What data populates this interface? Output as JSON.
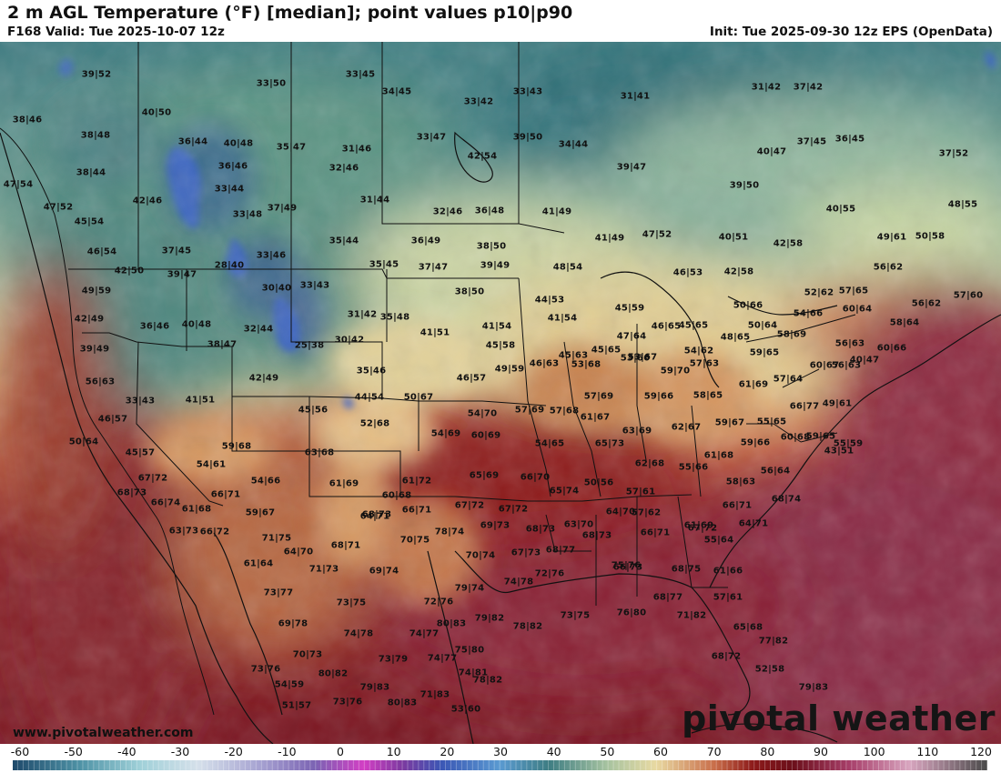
{
  "header": {
    "title": "2 m AGL Temperature (°F) [median]; point values p10|p90",
    "valid": "F168 Valid: Tue 2025-10-07 12z",
    "init": "Init: Tue 2025-09-30 12z EPS (OpenData)"
  },
  "footer": {
    "website": "www.pivotalweather.com",
    "logo_text": "pivotal weather"
  },
  "colorbar": {
    "ticks": [
      "-60",
      "-50",
      "-40",
      "-30",
      "-20",
      "-10",
      "0",
      "10",
      "20",
      "30",
      "40",
      "50",
      "60",
      "70",
      "80",
      "90",
      "100",
      "110",
      "120"
    ],
    "range": [
      -60,
      120
    ]
  },
  "point_values": [
    {
      "v": "39|52"
    },
    {
      "v": "33|50"
    },
    {
      "v": "33|45"
    },
    {
      "v": "34|45"
    },
    {
      "v": "33|42"
    },
    {
      "v": "33|43"
    },
    {
      "v": "31|41"
    },
    {
      "v": "31|42"
    },
    {
      "v": "37|42"
    },
    {
      "v": "38|46"
    },
    {
      "v": "40|50"
    },
    {
      "v": "38|48"
    },
    {
      "v": "36|44"
    },
    {
      "v": "40|48"
    },
    {
      "v": "35|47"
    },
    {
      "v": "31|46"
    },
    {
      "v": "33|47"
    },
    {
      "v": "39|50"
    },
    {
      "v": "34|44"
    },
    {
      "v": "40|47"
    },
    {
      "v": "37|45"
    },
    {
      "v": "36|45"
    },
    {
      "v": "37|52"
    },
    {
      "v": "38|44"
    },
    {
      "v": "36|46"
    },
    {
      "v": "32|46"
    },
    {
      "v": "42|54"
    },
    {
      "v": "39|47"
    },
    {
      "v": "47|54"
    },
    {
      "v": "33|44"
    },
    {
      "v": "31|44"
    },
    {
      "v": "39|50"
    },
    {
      "v": "47|52"
    },
    {
      "v": "42|46"
    },
    {
      "v": "33|48"
    },
    {
      "v": "37|49"
    },
    {
      "v": "32|46"
    },
    {
      "v": "36|48"
    },
    {
      "v": "41|49"
    },
    {
      "v": "40|55"
    },
    {
      "v": "48|55"
    },
    {
      "v": "45|54"
    },
    {
      "v": "35|44"
    },
    {
      "v": "36|49"
    },
    {
      "v": "41|49"
    },
    {
      "v": "47|52"
    },
    {
      "v": "40|51"
    },
    {
      "v": "42|58"
    },
    {
      "v": "49|61"
    },
    {
      "v": "50|58"
    },
    {
      "v": "46|54"
    },
    {
      "v": "37|45"
    },
    {
      "v": "33|46"
    },
    {
      "v": "38|50"
    },
    {
      "v": "28|40"
    },
    {
      "v": "35|45"
    },
    {
      "v": "37|47"
    },
    {
      "v": "39|49"
    },
    {
      "v": "48|54"
    },
    {
      "v": "46|53"
    },
    {
      "v": "42|58"
    },
    {
      "v": "56|62"
    },
    {
      "v": "42|50"
    },
    {
      "v": "39|47"
    },
    {
      "v": "30|40"
    },
    {
      "v": "33|43"
    },
    {
      "v": "38|50"
    },
    {
      "v": "44|53"
    },
    {
      "v": "52|62"
    },
    {
      "v": "57|65"
    },
    {
      "v": "57|60"
    },
    {
      "v": "49|59"
    },
    {
      "v": "31|42"
    },
    {
      "v": "35|48"
    },
    {
      "v": "41|54"
    },
    {
      "v": "45|59"
    },
    {
      "v": "50|66"
    },
    {
      "v": "56|62"
    },
    {
      "v": "60|64"
    },
    {
      "v": "42|49"
    },
    {
      "v": "36|46"
    },
    {
      "v": "40|48"
    },
    {
      "v": "32|44"
    },
    {
      "v": "41|51"
    },
    {
      "v": "41|54"
    },
    {
      "v": "45|65"
    },
    {
      "v": "50|64"
    },
    {
      "v": "54|66"
    },
    {
      "v": "58|64"
    },
    {
      "v": "39|49"
    },
    {
      "v": "38|47"
    },
    {
      "v": "25|38"
    },
    {
      "v": "30|42"
    },
    {
      "v": "45|58"
    },
    {
      "v": "47|64"
    },
    {
      "v": "46|65"
    },
    {
      "v": "48|65"
    },
    {
      "v": "58|69"
    },
    {
      "v": "56|63"
    },
    {
      "v": "60|66"
    },
    {
      "v": "56|63"
    },
    {
      "v": "42|49"
    },
    {
      "v": "35|46"
    },
    {
      "v": "46|57"
    },
    {
      "v": "49|59"
    },
    {
      "v": "46|63"
    },
    {
      "v": "45|63"
    },
    {
      "v": "45|65"
    },
    {
      "v": "53|67"
    },
    {
      "v": "54|62"
    },
    {
      "v": "59|65"
    },
    {
      "v": "40|47"
    },
    {
      "v": "33|43"
    },
    {
      "v": "41|51"
    },
    {
      "v": "44|54"
    },
    {
      "v": "50|67"
    },
    {
      "v": "53|68"
    },
    {
      "v": "53|66"
    },
    {
      "v": "59|70"
    },
    {
      "v": "57|63"
    },
    {
      "v": "57|64"
    },
    {
      "v": "60|67"
    },
    {
      "v": "56|63"
    },
    {
      "v": "46|57"
    },
    {
      "v": "45|56"
    },
    {
      "v": "52|68"
    },
    {
      "v": "54|70"
    },
    {
      "v": "57|69"
    },
    {
      "v": "57|68"
    },
    {
      "v": "57|69"
    },
    {
      "v": "59|66"
    },
    {
      "v": "58|65"
    },
    {
      "v": "61|69"
    },
    {
      "v": "66|77"
    },
    {
      "v": "49|61"
    },
    {
      "v": "50|64"
    },
    {
      "v": "54|69"
    },
    {
      "v": "60|69"
    },
    {
      "v": "61|67"
    },
    {
      "v": "63|69"
    },
    {
      "v": "62|67"
    },
    {
      "v": "59|67"
    },
    {
      "v": "55|65"
    },
    {
      "v": "60|68"
    },
    {
      "v": "59|65"
    },
    {
      "v": "55|59"
    },
    {
      "v": "45|57"
    },
    {
      "v": "59|68"
    },
    {
      "v": "63|68"
    },
    {
      "v": "54|65"
    },
    {
      "v": "65|73"
    },
    {
      "v": "59|66"
    },
    {
      "v": "43|51"
    },
    {
      "v": "54|61"
    },
    {
      "v": "54|66"
    },
    {
      "v": "61|69"
    },
    {
      "v": "61|72"
    },
    {
      "v": "65|69"
    },
    {
      "v": "66|70"
    },
    {
      "v": "62|68"
    },
    {
      "v": "55|66"
    },
    {
      "v": "61|68"
    },
    {
      "v": "58|63"
    },
    {
      "v": "56|64"
    },
    {
      "v": "67|72"
    },
    {
      "v": "60|68"
    },
    {
      "v": "50|56"
    },
    {
      "v": "68|73"
    },
    {
      "v": "68|73"
    },
    {
      "v": "66|71"
    },
    {
      "v": "65|74"
    },
    {
      "v": "57|61"
    },
    {
      "v": "68|74"
    },
    {
      "v": "66|74"
    },
    {
      "v": "61|68"
    },
    {
      "v": "59|67"
    },
    {
      "v": "64|71"
    },
    {
      "v": "66|71"
    },
    {
      "v": "67|72"
    },
    {
      "v": "67|72"
    },
    {
      "v": "63|70"
    },
    {
      "v": "64|70"
    },
    {
      "v": "57|62"
    },
    {
      "v": "66|71"
    },
    {
      "v": "63|73"
    },
    {
      "v": "66|72"
    },
    {
      "v": "71|75"
    },
    {
      "v": "78|74"
    },
    {
      "v": "69|73"
    },
    {
      "v": "68|73"
    },
    {
      "v": "68|73"
    },
    {
      "v": "66|71"
    },
    {
      "v": "67|72"
    },
    {
      "v": "61|69"
    },
    {
      "v": "64|71"
    },
    {
      "v": "64|70"
    },
    {
      "v": "68|71"
    },
    {
      "v": "70|75"
    },
    {
      "v": "70|74"
    },
    {
      "v": "67|73"
    },
    {
      "v": "68|77"
    },
    {
      "v": "66|73"
    },
    {
      "v": "55|64"
    },
    {
      "v": "61|64"
    },
    {
      "v": "71|73"
    },
    {
      "v": "69|74"
    },
    {
      "v": "75|76"
    },
    {
      "v": "68|75"
    },
    {
      "v": "61|66"
    },
    {
      "v": "73|77"
    },
    {
      "v": "73|75"
    },
    {
      "v": "72|76"
    },
    {
      "v": "79|74"
    },
    {
      "v": "74|78"
    },
    {
      "v": "72|76"
    },
    {
      "v": "68|77"
    },
    {
      "v": "57|61"
    },
    {
      "v": "69|78"
    },
    {
      "v": "74|78"
    },
    {
      "v": "74|77"
    },
    {
      "v": "80|83"
    },
    {
      "v": "79|82"
    },
    {
      "v": "78|82"
    },
    {
      "v": "73|75"
    },
    {
      "v": "76|80"
    },
    {
      "v": "71|82"
    },
    {
      "v": "65|68"
    },
    {
      "v": "70|73"
    },
    {
      "v": "73|79"
    },
    {
      "v": "74|77"
    },
    {
      "v": "75|80"
    },
    {
      "v": "78|82"
    },
    {
      "v": "68|72"
    },
    {
      "v": "77|82"
    },
    {
      "v": "73|76"
    },
    {
      "v": "80|82"
    },
    {
      "v": "74|81"
    },
    {
      "v": "52|58"
    },
    {
      "v": "54|59"
    },
    {
      "v": "79|83"
    },
    {
      "v": "71|83"
    },
    {
      "v": "79|83"
    },
    {
      "v": "51|57"
    },
    {
      "v": "73|76"
    },
    {
      "v": "80|83"
    },
    {
      "v": "53|60"
    }
  ]
}
